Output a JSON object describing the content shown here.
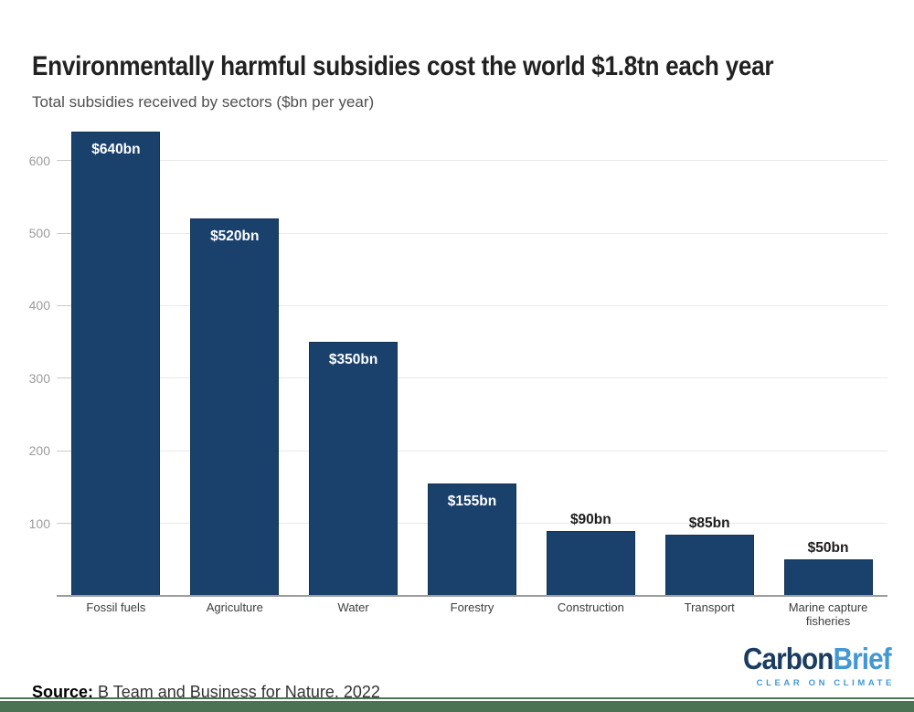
{
  "chart_data": {
    "type": "bar",
    "title": "Environmentally harmful subsidies cost the world $1.8tn each year",
    "subtitle": "Total subsidies received by sectors ($bn per year)",
    "categories": [
      "Fossil fuels",
      "Agriculture",
      "Water",
      "Forestry",
      "Construction",
      "Transport",
      "Marine capture fisheries"
    ],
    "values": [
      640,
      520,
      350,
      155,
      90,
      85,
      50
    ],
    "bar_labels": [
      "$640bn",
      "$520bn",
      "$350bn",
      "$155bn",
      "$90bn",
      "$85bn",
      "$50bn"
    ],
    "label_inside": [
      true,
      true,
      true,
      true,
      false,
      false,
      false
    ],
    "xlabel": "",
    "ylabel": "",
    "y_ticks": [
      100,
      200,
      300,
      400,
      500,
      600
    ],
    "y_tick_labels": [
      "100",
      "200",
      "300",
      "400",
      "500",
      "600"
    ],
    "ylim": [
      0,
      650
    ],
    "grid": true,
    "legend": "none",
    "colors": {
      "bar": "#1a416c",
      "bar_border": "#113355",
      "grid_line": "#e9e9e9",
      "tick_mark": "#cbcbcb",
      "axis_line": "#9e9e9e",
      "value_label_inside": "#ffffff",
      "value_label_outside": "#1c1c1c"
    }
  },
  "footer": {
    "source_label": "Source:",
    "source_text": " B Team and Business for Nature, 2022",
    "logo": {
      "part1": "Carbon",
      "part2": "Brief",
      "tagline": "CLEAR ON CLIMATE",
      "color_dark": "#193c60",
      "color_light": "#4398d4"
    },
    "bottom_bar_color": "#4c7254"
  }
}
